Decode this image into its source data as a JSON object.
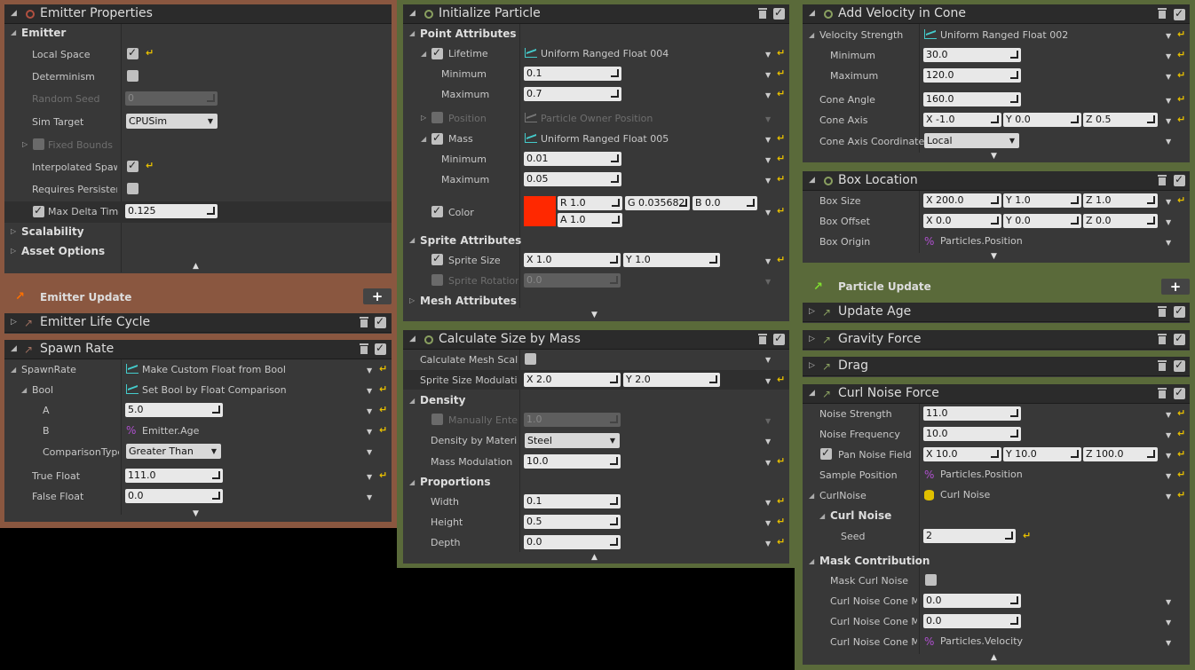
{
  "colors": {
    "emitter_bg": "#8a5740",
    "particle_bg": "#5a6a3a",
    "panel": "#383838",
    "header": "#2b2b2b",
    "reset": "#e8c000",
    "swatch": "#ff2800"
  },
  "emitter_properties": {
    "title": "Emitter Properties",
    "sec_emitter": "Emitter",
    "local_space": "Local Space",
    "determinism": "Determinism",
    "random_seed": "Random Seed",
    "random_seed_val": "0",
    "sim_target": "Sim Target",
    "sim_target_val": "CPUSim",
    "fixed_bounds": "Fixed Bounds",
    "interp_spawn": "Interpolated Spawn",
    "req_persist": "Requires Persisten",
    "max_delta": "Max Delta Time",
    "max_delta_val": "0.125",
    "scalability": "Scalability",
    "asset_options": "Asset Options"
  },
  "emitter_update": {
    "title": "Emitter Update",
    "life_cycle": "Emitter Life Cycle",
    "spawn_rate": "Spawn Rate",
    "spawnrate_lbl": "SpawnRate",
    "spawnrate_val": "Make Custom Float from Bool",
    "bool_lbl": "Bool",
    "bool_val": "Set Bool by Float Comparison",
    "a_lbl": "A",
    "a_val": "5.0",
    "b_lbl": "B",
    "b_val": "Emitter.Age",
    "cmp_lbl": "ComparisonType",
    "cmp_val": "Greater Than",
    "true_lbl": "True Float",
    "true_val": "111.0",
    "false_lbl": "False Float",
    "false_val": "0.0"
  },
  "init_particle": {
    "title": "Initialize Particle",
    "sec_point": "Point Attributes",
    "lifetime": "Lifetime",
    "lifetime_val": "Uniform Ranged Float 004",
    "minimum": "Minimum",
    "maximum": "Maximum",
    "life_min": "0.1",
    "life_max": "0.7",
    "position": "Position",
    "position_val": "Particle Owner Position",
    "mass": "Mass",
    "mass_val": "Uniform Ranged Float 005",
    "mass_min": "0.01",
    "mass_max": "0.05",
    "color": "Color",
    "r": "R  1.0",
    "g": "G  0.035682",
    "b": "B  0.0",
    "a": "A  1.0",
    "sec_sprite": "Sprite Attributes",
    "sprite_size": "Sprite Size",
    "ss_x": "X  1.0",
    "ss_y": "Y  1.0",
    "sprite_rot": "Sprite Rotation",
    "sprite_rot_val": "0.0",
    "sec_mesh": "Mesh Attributes"
  },
  "calc_size": {
    "title": "Calculate Size by Mass",
    "calc_mesh": "Calculate Mesh Scale",
    "ssm": "Sprite Size Modulatio",
    "ssm_x": "X  2.0",
    "ssm_y": "Y  2.0",
    "sec_density": "Density",
    "manual": "Manually Enter",
    "manual_val": "1.0",
    "dens_mat": "Density by Materia",
    "dens_mat_val": "Steel",
    "mass_mod": "Mass Modulation",
    "mass_mod_val": "10.0",
    "sec_prop": "Proportions",
    "width": "Width",
    "width_val": "0.1",
    "height": "Height",
    "height_val": "0.5",
    "depth": "Depth",
    "depth_val": "0.0"
  },
  "add_velocity": {
    "title": "Add Velocity in Cone",
    "vel_strength": "Velocity Strength",
    "vel_val": "Uniform Ranged Float 002",
    "minimum": "Minimum",
    "maximum": "Maximum",
    "vmin": "30.0",
    "vmax": "120.0",
    "cone_angle": "Cone Angle",
    "cone_angle_val": "160.0",
    "cone_axis": "Cone Axis",
    "ca_x": "X  -1.0",
    "ca_y": "Y  0.0",
    "ca_z": "Z  0.5",
    "cone_coord": "Cone Axis Coordinate",
    "cone_coord_val": "Local"
  },
  "box_location": {
    "title": "Box Location",
    "box_size": "Box Size",
    "bs_x": "X  200.0",
    "bs_y": "Y  1.0",
    "bs_z": "Z  1.0",
    "box_offset": "Box Offset",
    "bo_x": "X  0.0",
    "bo_y": "Y  0.0",
    "bo_z": "Z  0.0",
    "box_origin": "Box Origin",
    "box_origin_val": "Particles.Position"
  },
  "particle_update": {
    "title": "Particle Update",
    "update_age": "Update Age",
    "gravity": "Gravity Force",
    "drag": "Drag"
  },
  "curl_noise": {
    "title": "Curl Noise Force",
    "noise_strength": "Noise Strength",
    "noise_strength_val": "11.0",
    "noise_freq": "Noise Frequency",
    "noise_freq_val": "10.0",
    "pan_noise": "Pan Noise Field",
    "pn_x": "X  10.0",
    "pn_y": "Y  10.0",
    "pn_z": "Z  100.0",
    "sample_pos": "Sample Position",
    "sample_pos_val": "Particles.Position",
    "curlnoise": "CurlNoise",
    "curlnoise_val": "Curl Noise",
    "sec_curl": "Curl Noise",
    "seed": "Seed",
    "seed_val": "2",
    "sec_mask": "Mask Contribution",
    "mask_curl": "Mask Curl Noise",
    "cone1": "Curl Noise Cone Ma",
    "cone1_val": "0.0",
    "cone2": "Curl Noise Cone Ma",
    "cone2_val": "0.0",
    "cone3": "Curl Noise Cone Ma",
    "cone3_val": "Particles.Velocity"
  },
  "icons": {
    "trash": "trash-icon",
    "check": "enable-checkbox",
    "reset": "reset-arrow-icon",
    "plus": "add-module-icon"
  }
}
